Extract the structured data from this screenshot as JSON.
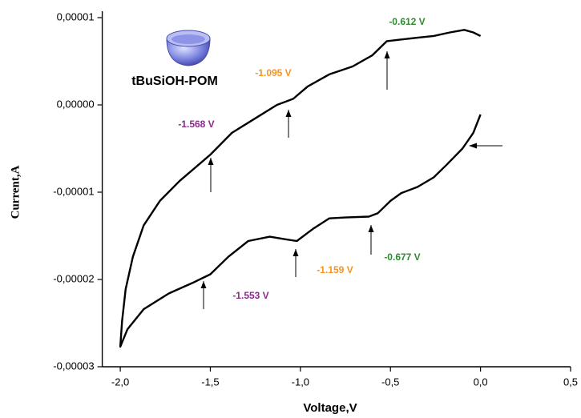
{
  "chart_data": {
    "type": "line",
    "xlabel": "Voltage,V",
    "ylabel": "Current,A",
    "legend_label": "tBuSiOH-POM",
    "xlim": [
      -2.1,
      0.5
    ],
    "ylim": [
      -3e-05,
      1e-05
    ],
    "xticks": [
      {
        "value": -2.0,
        "label": "-2,0"
      },
      {
        "value": -1.5,
        "label": "-1,5"
      },
      {
        "value": -1.0,
        "label": "-1,0"
      },
      {
        "value": -0.5,
        "label": "-0,5"
      },
      {
        "value": 0.0,
        "label": "0,0"
      },
      {
        "value": 0.5,
        "label": "0,5"
      }
    ],
    "yticks": [
      {
        "value": 1e-05,
        "label": "0,00001"
      },
      {
        "value": 0,
        "label": "0,00000"
      },
      {
        "value": -1e-05,
        "label": "-0,00001"
      },
      {
        "value": -2e-05,
        "label": "-0,00002"
      },
      {
        "value": -3e-05,
        "label": "-0,00003"
      }
    ],
    "series": [
      {
        "name": "tBuSiOH-POM",
        "color": "#000000",
        "x": [
          0.0,
          -0.04,
          -0.1,
          -0.19,
          -0.26,
          -0.35,
          -0.44,
          -0.5,
          -0.57,
          -0.62,
          -0.75,
          -0.84,
          -0.93,
          -1.02,
          -1.08,
          -1.17,
          -1.29,
          -1.4,
          -1.5,
          -1.6,
          -1.73,
          -1.87,
          -1.96,
          -2.0,
          -1.99,
          -1.97,
          -1.93,
          -1.87,
          -1.78,
          -1.67,
          -1.5,
          -1.38,
          -1.24,
          -1.13,
          -1.04,
          -0.96,
          -0.84,
          -0.71,
          -0.6,
          -0.52,
          -0.44,
          -0.35,
          -0.26,
          -0.17,
          -0.09,
          -0.04,
          0.0
        ],
        "values": [
          -1.1e-06,
          -3.2e-06,
          -5e-06,
          -6.9e-06,
          -8.3e-06,
          -9.4e-06,
          -1.01e-05,
          -1.1e-05,
          -1.24e-05,
          -1.28e-05,
          -1.29e-05,
          -1.3e-05,
          -1.42e-05,
          -1.56e-05,
          -1.54e-05,
          -1.51e-05,
          -1.56e-05,
          -1.74e-05,
          -1.94e-05,
          -2.04e-05,
          -2.16e-05,
          -2.34e-05,
          -2.57e-05,
          -2.77e-05,
          -2.48e-05,
          -2.11e-05,
          -1.74e-05,
          -1.38e-05,
          -1.1e-05,
          -8.7e-06,
          -5.7e-06,
          -3.2e-06,
          -1.4e-06,
          0.0,
          7e-07,
          2.1e-06,
          3.5e-06,
          4.4e-06,
          5.7e-06,
          7.3e-06,
          7.5e-06,
          7.7e-06,
          7.9e-06,
          8.3e-06,
          8.6e-06,
          8.3e-06,
          7.9e-06
        ]
      }
    ],
    "annotations": [
      {
        "text": "-0.612 V",
        "color": "#2e8b2e"
      },
      {
        "text": "-1.095 V",
        "color": "#f7931e"
      },
      {
        "text": "-1.568 V",
        "color": "#8b2a8b"
      },
      {
        "text": "-0.677 V",
        "color": "#2e8b2e"
      },
      {
        "text": "-1.159 V",
        "color": "#f7931e"
      },
      {
        "text": "-1.553 V",
        "color": "#8b2a8b"
      }
    ]
  }
}
